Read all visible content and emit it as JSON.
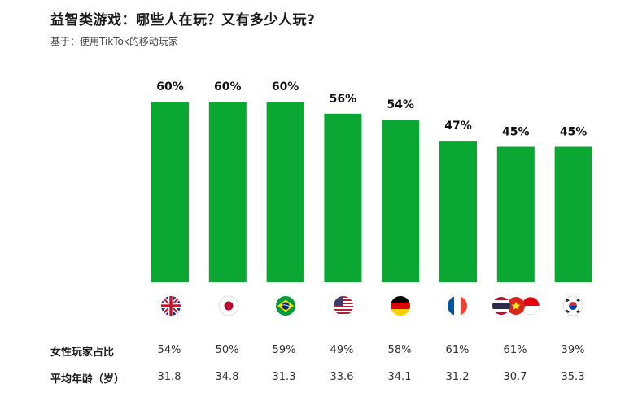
{
  "header": {
    "title": "益智类游戏：哪些人在玩？又有多少人玩?",
    "subtitle": "基于：使用TikTok的移动玩家"
  },
  "chart_data": {
    "type": "bar",
    "categories": [
      "UK",
      "Japan",
      "Brazil",
      "USA",
      "Germany",
      "France",
      "Thailand/Vietnam/Indonesia",
      "South Korea"
    ],
    "values": [
      60,
      60,
      60,
      56,
      54,
      47,
      45,
      45
    ],
    "value_labels": [
      "60%",
      "60%",
      "60%",
      "56%",
      "54%",
      "47%",
      "45%",
      "45%"
    ],
    "ylim": [
      0,
      60
    ],
    "bar_color": "#0aa832",
    "grid": false
  },
  "flags": [
    "uk-flag-icon",
    "japan-flag-icon",
    "brazil-flag-icon",
    "usa-flag-icon",
    "germany-flag-icon",
    "france-flag-icon",
    "thailand-vietnam-indonesia-flags-icon",
    "south-korea-flag-icon"
  ],
  "table": {
    "rows": [
      {
        "label": "女性玩家占比",
        "values": [
          "54%",
          "50%",
          "59%",
          "49%",
          "58%",
          "61%",
          "61%",
          "39%"
        ]
      },
      {
        "label": "平均年龄（岁）",
        "values": [
          "31.8",
          "34.8",
          "31.3",
          "33.6",
          "34.1",
          "31.2",
          "30.7",
          "35.3"
        ]
      }
    ]
  }
}
